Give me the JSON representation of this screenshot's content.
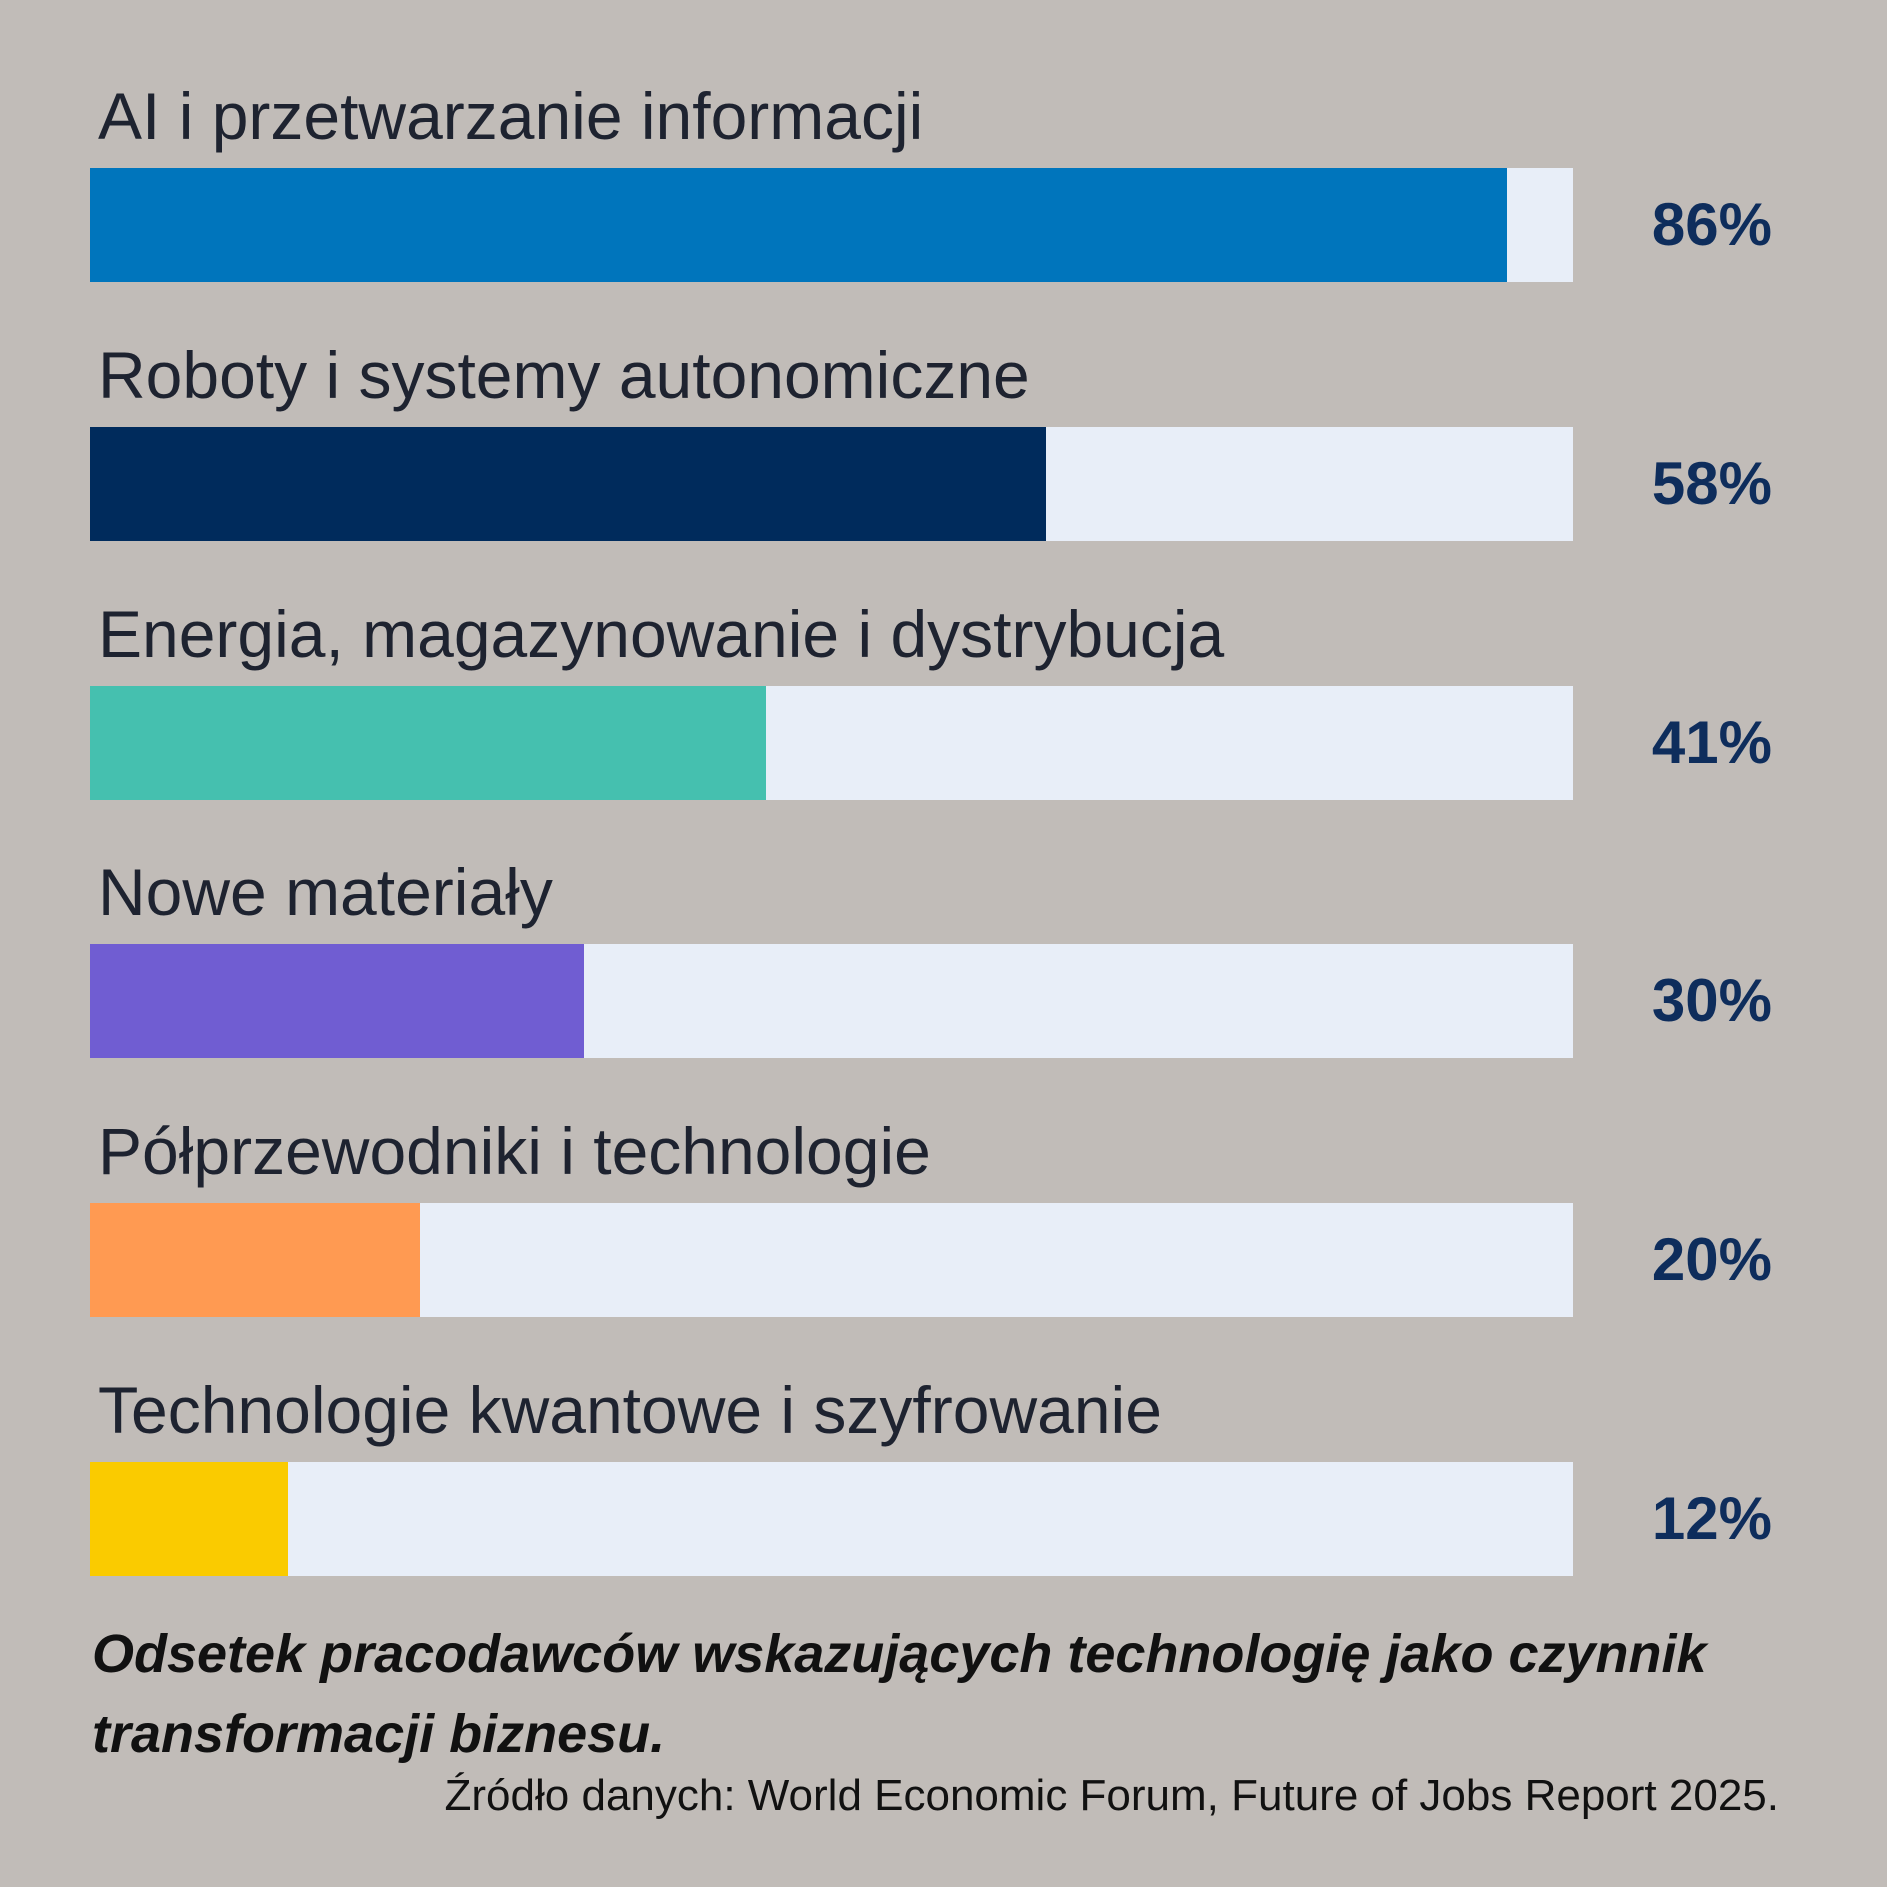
{
  "chart_data": {
    "type": "bar",
    "orientation": "horizontal",
    "categories": [
      "AI i przetwarzanie informacji",
      "Roboty i systemy autonomiczne",
      "Energia, magazynowanie i dystrybucja",
      "Nowe materiały",
      "Półprzewodniki i technologie",
      "Technologie kwantowe i szyfrowanie"
    ],
    "values": [
      86,
      58,
      41,
      30,
      20,
      12
    ],
    "value_labels": [
      "86%",
      "58%",
      "41%",
      "30%",
      "20%",
      "12%"
    ],
    "colors": [
      "#0075bc",
      "#002b5c",
      "#45c0af",
      "#705dd2",
      "#ff9a52",
      "#facb00"
    ],
    "track_color": "#e8eef8",
    "value_label_color": "#0e2d5c",
    "xlim": [
      0,
      90
    ],
    "grid": false,
    "legend": "none",
    "title": "",
    "xlabel": "",
    "ylabel": ""
  },
  "caption": "Odsetek pracodawców wskazujących technologię jako czynnik transformacji biznesu.",
  "source": "Źródło danych: World Economic Forum, Future of Jobs Report 2025."
}
